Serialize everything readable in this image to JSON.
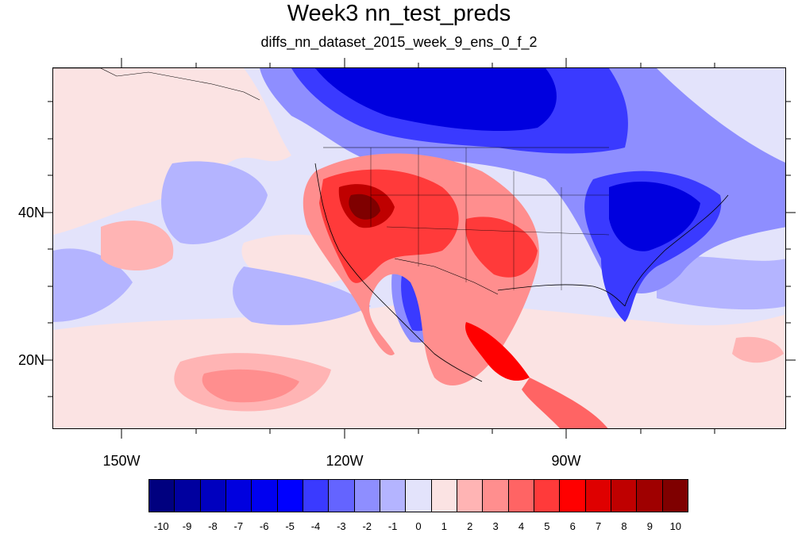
{
  "title": "Week3 nn_test_preds",
  "subtitle": "diffs_nn_dataset_2015_week_9_ens_0_f_2",
  "lon_labels": [
    "150W",
    "120W",
    "90W"
  ],
  "lat_labels": [
    "40N",
    "20N"
  ],
  "colorbar": {
    "labels": [
      "-10",
      "-9",
      "-8",
      "-7",
      "-6",
      "-5",
      "-4",
      "-3",
      "-2",
      "-1",
      "0",
      "1",
      "2",
      "3",
      "4",
      "5",
      "6",
      "7",
      "8",
      "9",
      "10"
    ],
    "colors": [
      "#00007f",
      "#00009f",
      "#0000bf",
      "#0000df",
      "#0000f0",
      "#0000ff",
      "#3a3aff",
      "#6464ff",
      "#8e8eff",
      "#b4b4ff",
      "#e3e3fb",
      "#fbe3e3",
      "#ffb4b4",
      "#ff8e8e",
      "#ff6464",
      "#ff3a3a",
      "#ff0000",
      "#df0000",
      "#bf0000",
      "#9f0000",
      "#7f0000"
    ]
  },
  "field_colors": {
    "background": "#e3e3fb",
    "strong_blue": "#0000df",
    "blue": "#3a3aff",
    "light_blue": "#8e8eff",
    "pale_blue": "#b4b4ff",
    "pale_red": "#fbe3e3",
    "light_red": "#ffb4b4",
    "red": "#ff3a3a",
    "dark_red": "#bf0000",
    "darkest_red": "#7f0000"
  }
}
